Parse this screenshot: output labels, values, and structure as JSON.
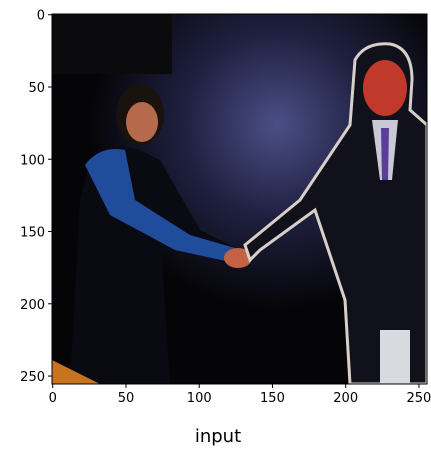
{
  "chart_data": {
    "type": "image",
    "xlabel": "input",
    "xlim": [
      -0.5,
      255.5
    ],
    "ylim": [
      255.5,
      -0.5
    ],
    "xticks": [
      0,
      50,
      100,
      150,
      200,
      250
    ],
    "yticks": [
      0,
      50,
      100,
      150,
      200,
      250
    ]
  }
}
